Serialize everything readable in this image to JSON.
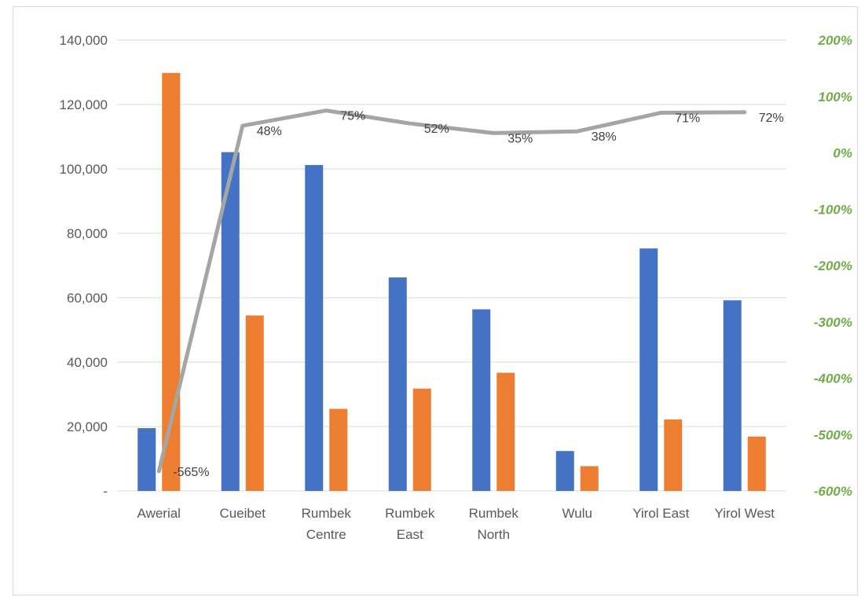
{
  "chart_data": {
    "type": "bar",
    "categories": [
      "Awerial",
      "Cueibet",
      "Rumbek Centre",
      "Rumbek East",
      "Rumbek North",
      "Wulu",
      "Yirol East",
      "Yirol West"
    ],
    "category_lines": [
      [
        "Awerial"
      ],
      [
        "Cueibet"
      ],
      [
        "Rumbek",
        "Centre"
      ],
      [
        "Rumbek",
        "East"
      ],
      [
        "Rumbek",
        "North"
      ],
      [
        "Wulu"
      ],
      [
        "Yirol East"
      ],
      [
        "Yirol West"
      ]
    ],
    "series": [
      {
        "type": "bar",
        "axis": "left",
        "color": "#4472c4",
        "values": [
          19500,
          105200,
          101200,
          66300,
          56400,
          12400,
          75300,
          59200
        ]
      },
      {
        "type": "bar",
        "axis": "left",
        "color": "#ed7d31",
        "values": [
          129800,
          54500,
          25500,
          31800,
          36700,
          7700,
          22200,
          16900
        ]
      },
      {
        "type": "line",
        "axis": "right",
        "color": "#a5a5a5",
        "values": [
          -565,
          48,
          75,
          52,
          35,
          38,
          71,
          72
        ],
        "labels": [
          "-565%",
          "48%",
          "75%",
          "52%",
          "35%",
          "38%",
          "71%",
          "72%"
        ]
      }
    ],
    "y_left": {
      "min": 0,
      "max": 140000,
      "ticks": [
        0,
        20000,
        40000,
        60000,
        80000,
        100000,
        120000,
        140000
      ],
      "tick_labels": [
        "-",
        "20,000",
        "40,000",
        "60,000",
        "80,000",
        "100,000",
        "120,000",
        "140,000"
      ]
    },
    "y_right": {
      "min": -600,
      "max": 200,
      "ticks": [
        -600,
        -500,
        -400,
        -300,
        -200,
        -100,
        0,
        100,
        200
      ],
      "tick_labels": [
        "-600%",
        "-500%",
        "-400%",
        "-300%",
        "-200%",
        "-100%",
        "0%",
        "100%",
        "200%"
      ],
      "color": "#70ad47"
    },
    "grid": true,
    "gridline_color": "#d9d9d9"
  }
}
